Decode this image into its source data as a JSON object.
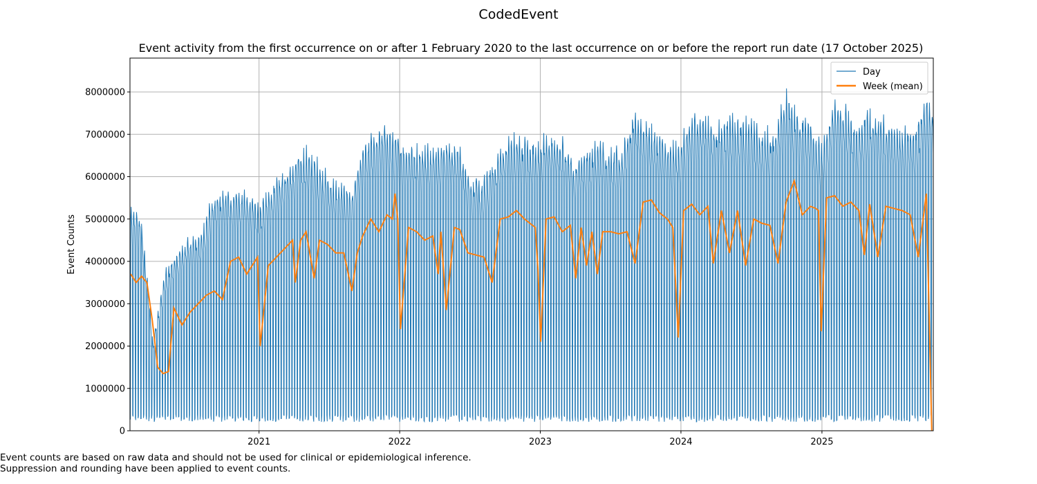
{
  "figure": {
    "suptitle": "CodedEvent",
    "footnote_1": "Event counts are based on raw data and should not be used for clinical or epidemiological inference.",
    "footnote_2": "Suppression and rounding have been applied to event counts."
  },
  "chart_data": {
    "type": "line",
    "title": "Event activity from the first occurrence on or after 1 February 2020 to the last occurrence on or before the report run date (17 October 2025)",
    "xlabel": "",
    "ylabel": "Event Counts",
    "xlim": [
      "2020-02-01",
      "2025-10-17"
    ],
    "ylim": [
      0,
      8800000
    ],
    "x_ticks": [
      "2021",
      "2022",
      "2023",
      "2024",
      "2025"
    ],
    "y_ticks": [
      0,
      1000000,
      2000000,
      3000000,
      4000000,
      5000000,
      6000000,
      7000000,
      8000000
    ],
    "y_tick_labels": [
      "0",
      "1000000",
      "2000000",
      "3000000",
      "4000000",
      "5000000",
      "6000000",
      "7000000",
      "8000000"
    ],
    "grid": true,
    "legend_position": "top-right",
    "series": [
      {
        "name": "Day",
        "color": "#1f77b4",
        "description_of_pattern": "daily counts with strong weekly cycle (weekday highs, weekend lows)",
        "weekday_peak_envelope": {
          "x": [
            "2020-02-01",
            "2020-03-01",
            "2020-04-01",
            "2020-05-01",
            "2020-06-01",
            "2020-07-01",
            "2020-08-01",
            "2020-09-01",
            "2020-10-01",
            "2020-11-01",
            "2020-12-01",
            "2021-01-01",
            "2021-02-01",
            "2021-03-01",
            "2021-04-01",
            "2021-05-01",
            "2021-06-01",
            "2021-07-01",
            "2021-08-01",
            "2021-09-01",
            "2021-10-01",
            "2021-11-01",
            "2021-12-01",
            "2022-01-01",
            "2022-02-01",
            "2022-03-01",
            "2022-04-01",
            "2022-05-01",
            "2022-06-01",
            "2022-07-01",
            "2022-08-01",
            "2022-09-01",
            "2022-10-01",
            "2022-11-01",
            "2022-12-01",
            "2023-01-01",
            "2023-02-01",
            "2023-03-01",
            "2023-04-01",
            "2023-05-01",
            "2023-06-01",
            "2023-07-01",
            "2023-08-01",
            "2023-09-01",
            "2023-10-01",
            "2023-11-01",
            "2023-12-01",
            "2024-01-01",
            "2024-02-01",
            "2024-03-01",
            "2024-04-01",
            "2024-05-01",
            "2024-06-01",
            "2024-07-01",
            "2024-08-01",
            "2024-09-01",
            "2024-10-01",
            "2024-11-01",
            "2024-12-01",
            "2025-01-01",
            "2025-02-01",
            "2025-03-01",
            "2025-04-01",
            "2025-05-01",
            "2025-06-01",
            "2025-07-01",
            "2025-08-01",
            "2025-09-01",
            "2025-10-01",
            "2025-10-17"
          ],
          "y": [
            5300000,
            5200000,
            2200000,
            3800000,
            4300000,
            4650000,
            4700000,
            5600000,
            5750000,
            5800000,
            5700000,
            5400000,
            5900000,
            6300000,
            6500000,
            6800000,
            6500000,
            6100000,
            5900000,
            5850000,
            6900000,
            7200000,
            7400000,
            7000000,
            6900000,
            6800000,
            6900000,
            7000000,
            6950000,
            6200000,
            5950000,
            6500000,
            7000000,
            7100000,
            7000000,
            7000000,
            7200000,
            7000000,
            6500000,
            6800000,
            6900000,
            6800000,
            6800000,
            7700000,
            7500000,
            7200000,
            6800000,
            7000000,
            7600000,
            7650000,
            7400000,
            7600000,
            7500000,
            7400000,
            7200000,
            7300000,
            8100000,
            7600000,
            7500000,
            6800000,
            7950000,
            7800000,
            7400000,
            7650000,
            7600000,
            7350000,
            7300000,
            7300000,
            8100000,
            7900000
          ],
          "weekend_low_approx": 300000
        }
      },
      {
        "name": "Week (mean)",
        "color": "#ff7f0e",
        "x": [
          "2020-02-03",
          "2020-02-17",
          "2020-03-02",
          "2020-03-16",
          "2020-03-30",
          "2020-04-13",
          "2020-04-27",
          "2020-05-11",
          "2020-05-25",
          "2020-06-15",
          "2020-07-06",
          "2020-07-27",
          "2020-08-17",
          "2020-09-07",
          "2020-09-28",
          "2020-10-19",
          "2020-11-09",
          "2020-11-30",
          "2020-12-21",
          "2020-12-28",
          "2021-01-04",
          "2021-01-25",
          "2021-02-15",
          "2021-03-08",
          "2021-03-29",
          "2021-04-05",
          "2021-04-19",
          "2021-05-03",
          "2021-05-24",
          "2021-06-07",
          "2021-06-28",
          "2021-07-19",
          "2021-08-09",
          "2021-08-30",
          "2021-09-13",
          "2021-09-27",
          "2021-10-18",
          "2021-11-08",
          "2021-11-29",
          "2021-12-13",
          "2021-12-20",
          "2021-12-27",
          "2022-01-03",
          "2022-01-24",
          "2022-02-14",
          "2022-03-07",
          "2022-03-28",
          "2022-04-11",
          "2022-04-18",
          "2022-05-02",
          "2022-05-23",
          "2022-06-06",
          "2022-06-27",
          "2022-07-18",
          "2022-08-08",
          "2022-08-29",
          "2022-09-19",
          "2022-10-10",
          "2022-10-31",
          "2022-11-21",
          "2022-12-05",
          "2022-12-19",
          "2022-12-26",
          "2023-01-02",
          "2023-01-16",
          "2023-02-06",
          "2023-02-27",
          "2023-03-20",
          "2023-04-03",
          "2023-04-17",
          "2023-05-01",
          "2023-05-15",
          "2023-05-29",
          "2023-06-12",
          "2023-07-03",
          "2023-07-24",
          "2023-08-14",
          "2023-09-04",
          "2023-09-25",
          "2023-10-16",
          "2023-11-06",
          "2023-11-27",
          "2023-12-11",
          "2023-12-25",
          "2024-01-08",
          "2024-01-29",
          "2024-02-19",
          "2024-03-11",
          "2024-03-25",
          "2024-04-15",
          "2024-05-06",
          "2024-05-27",
          "2024-06-17",
          "2024-07-08",
          "2024-07-29",
          "2024-08-19",
          "2024-09-09",
          "2024-09-30",
          "2024-10-21",
          "2024-11-11",
          "2024-12-02",
          "2024-12-16",
          "2024-12-23",
          "2024-12-30",
          "2025-01-13",
          "2025-02-03",
          "2025-02-24",
          "2025-03-17",
          "2025-04-07",
          "2025-04-21",
          "2025-05-05",
          "2025-05-26",
          "2025-06-16",
          "2025-07-07",
          "2025-07-28",
          "2025-08-18",
          "2025-09-08",
          "2025-09-29",
          "2025-10-13"
        ],
        "y": [
          3700000,
          3500000,
          3650000,
          3500000,
          2600000,
          1500000,
          1350000,
          1400000,
          2900000,
          2500000,
          2800000,
          3000000,
          3200000,
          3300000,
          3100000,
          4000000,
          4100000,
          3700000,
          4000000,
          4100000,
          2000000,
          3900000,
          4100000,
          4300000,
          4500000,
          3500000,
          4500000,
          4700000,
          3600000,
          4500000,
          4400000,
          4200000,
          4200000,
          3300000,
          4200000,
          4600000,
          5000000,
          4700000,
          5100000,
          5000000,
          5600000,
          5000000,
          2400000,
          4800000,
          4700000,
          4500000,
          4600000,
          3700000,
          4700000,
          2850000,
          4800000,
          4750000,
          4200000,
          4150000,
          4100000,
          3500000,
          5000000,
          5050000,
          5200000,
          5000000,
          4900000,
          4800000,
          3800000,
          2100000,
          5000000,
          5050000,
          4700000,
          4850000,
          3600000,
          4800000,
          3900000,
          4700000,
          3700000,
          4700000,
          4700000,
          4650000,
          4700000,
          3950000,
          5400000,
          5450000,
          5150000,
          5000000,
          4800000,
          2200000,
          5200000,
          5350000,
          5100000,
          5300000,
          3950000,
          5200000,
          4200000,
          5200000,
          3900000,
          5000000,
          4900000,
          4850000,
          3950000,
          5400000,
          5900000,
          5100000,
          5300000,
          5250000,
          5200000,
          2350000,
          5500000,
          5550000,
          5300000,
          5400000,
          5200000,
          4150000,
          5350000,
          4100000,
          5300000,
          5250000,
          5200000,
          5100000,
          4100000,
          5600000,
          0
        ]
      }
    ]
  }
}
